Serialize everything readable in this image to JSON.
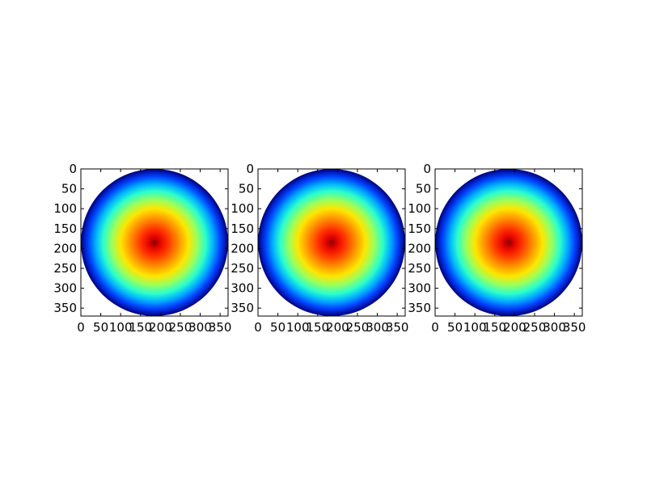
{
  "colors": {
    "background": "#ffffff",
    "axes_edge": "#000000",
    "colormap": "jet",
    "center": "#800000",
    "edge": "#00007f"
  },
  "chart_data": [
    {
      "type": "heatmap",
      "image": "radial-gradient-disc",
      "colormap": "jet",
      "xlim": [
        0,
        370
      ],
      "ylim": [
        370,
        0
      ],
      "x_ticks": [
        0,
        50,
        100,
        150,
        200,
        250,
        300,
        350
      ],
      "y_ticks": [
        0,
        50,
        100,
        150,
        200,
        250,
        300,
        350
      ],
      "x_tick_labels": [
        "0",
        "50",
        "100",
        "150",
        "200",
        "250",
        "300",
        "350"
      ],
      "y_tick_labels": [
        "0",
        "50",
        "100",
        "150",
        "200",
        "250",
        "300",
        "350"
      ],
      "disc_center": [
        185,
        185
      ],
      "disc_radius": 185,
      "grid": false
    },
    {
      "type": "heatmap",
      "image": "radial-gradient-disc",
      "colormap": "jet",
      "xlim": [
        0,
        370
      ],
      "ylim": [
        370,
        0
      ],
      "x_ticks": [
        0,
        50,
        100,
        150,
        200,
        250,
        300,
        350
      ],
      "y_ticks": [
        0,
        50,
        100,
        150,
        200,
        250,
        300,
        350
      ],
      "x_tick_labels": [
        "0",
        "50",
        "100",
        "150",
        "200",
        "250",
        "300",
        "350"
      ],
      "y_tick_labels": [
        "0",
        "50",
        "100",
        "150",
        "200",
        "250",
        "300",
        "350"
      ],
      "disc_center": [
        185,
        185
      ],
      "disc_radius": 185,
      "grid": false
    },
    {
      "type": "heatmap",
      "image": "radial-gradient-disc",
      "colormap": "jet",
      "xlim": [
        0,
        370
      ],
      "ylim": [
        370,
        0
      ],
      "x_ticks": [
        0,
        50,
        100,
        150,
        200,
        250,
        300,
        350
      ],
      "y_ticks": [
        0,
        50,
        100,
        150,
        200,
        250,
        300,
        350
      ],
      "x_tick_labels": [
        "0",
        "50",
        "100",
        "150",
        "200",
        "250",
        "300",
        "350"
      ],
      "y_tick_labels": [
        "0",
        "50",
        "100",
        "150",
        "200",
        "250",
        "300",
        "350"
      ],
      "disc_center": [
        185,
        185
      ],
      "disc_radius": 185,
      "grid": false
    }
  ]
}
